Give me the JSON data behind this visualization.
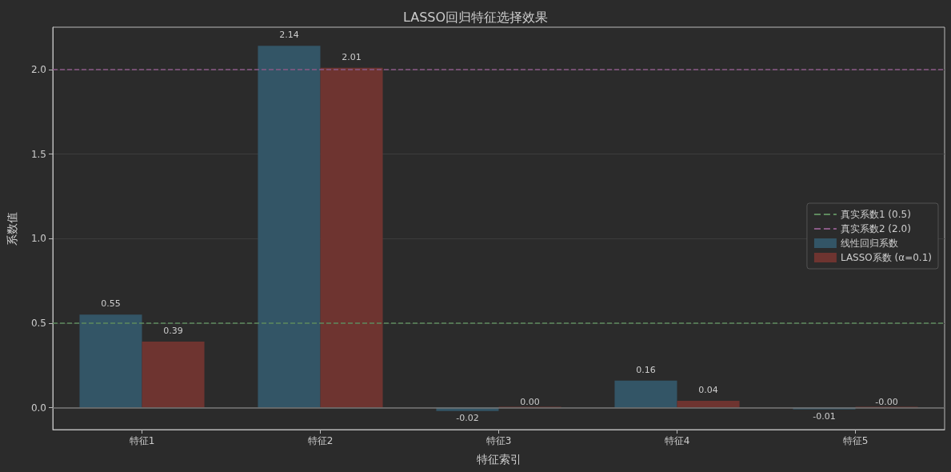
{
  "chart_data": {
    "type": "bar",
    "title": "LASSO回归特征选择效果",
    "xlabel": "特征索引",
    "ylabel": "系数值",
    "categories": [
      "特征1",
      "特征2",
      "特征3",
      "特征4",
      "特征5"
    ],
    "series": [
      {
        "name": "线性回归系数",
        "color": "#335566",
        "values": [
          0.55,
          2.14,
          -0.02,
          0.16,
          -0.01
        ],
        "value_labels": [
          "0.55",
          "2.14",
          "-0.02",
          "0.16",
          "-0.01"
        ]
      },
      {
        "name": "LASSO系数 (α=0.1)",
        "color": "#6e3430",
        "values": [
          0.39,
          2.01,
          0.0,
          0.04,
          0.0
        ],
        "value_labels": [
          "0.39",
          "2.01",
          "0.00",
          "0.04",
          "-0.00"
        ]
      }
    ],
    "ref_lines": [
      {
        "axis": "y",
        "value": 0.5,
        "label": "真实系数1 (0.5)",
        "color": "#5e8a5e",
        "line_style": "dashed"
      },
      {
        "axis": "y",
        "value": 2.0,
        "label": "真实系数2 (2.0)",
        "color": "#8a5a86",
        "line_style": "dashed"
      },
      {
        "axis": "y",
        "value": 0,
        "color": "#777777",
        "line_style": "solid"
      }
    ],
    "ylim": [
      -0.13,
      2.25
    ],
    "yticks": [
      {
        "value": 0,
        "label": "0.0"
      },
      {
        "value": 0.5,
        "label": "0.5"
      },
      {
        "value": 1,
        "label": "1.0"
      },
      {
        "value": 1.5,
        "label": "1.5"
      },
      {
        "value": 2,
        "label": "2.0"
      }
    ],
    "grid": "y",
    "legend": "right"
  }
}
